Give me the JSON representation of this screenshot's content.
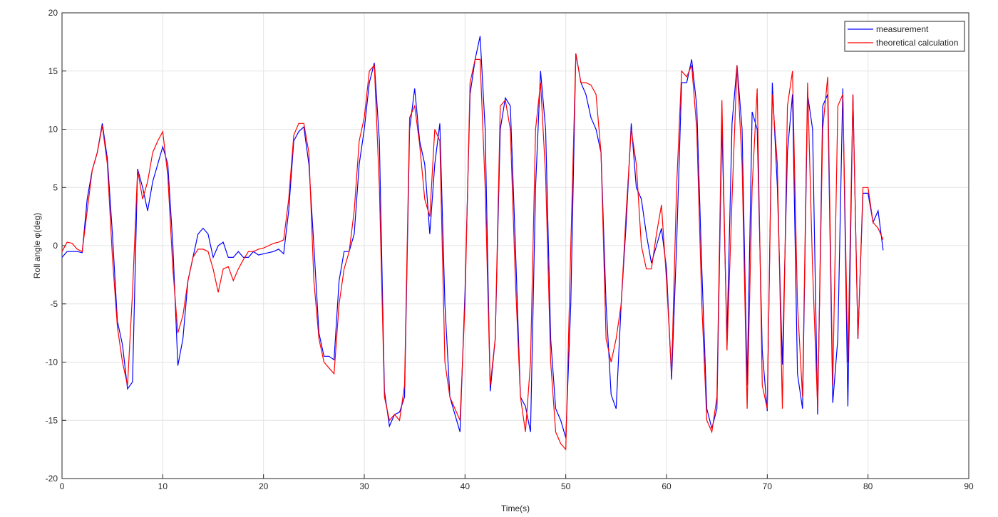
{
  "chart_data": {
    "type": "line",
    "xlabel": "Time(s)",
    "ylabel": "Roll angle φ(deg)",
    "xlim": [
      0,
      90
    ],
    "ylim": [
      -20,
      20
    ],
    "xticks": [
      0,
      10,
      20,
      30,
      40,
      50,
      60,
      70,
      80,
      90
    ],
    "yticks": [
      -20,
      -15,
      -10,
      -5,
      0,
      5,
      10,
      15,
      20
    ],
    "grid": true,
    "legend": "upper right",
    "x": [
      0,
      0.5,
      1,
      1.5,
      2,
      2.5,
      3,
      3.5,
      4,
      4.5,
      5,
      5.5,
      6,
      6.5,
      7,
      7.5,
      8,
      8.5,
      9,
      9.5,
      10,
      10.5,
      11,
      11.5,
      12,
      12.5,
      13,
      13.5,
      14,
      14.5,
      15,
      15.5,
      16,
      16.5,
      17,
      17.5,
      18,
      18.5,
      19,
      19.5,
      20,
      20.5,
      21,
      21.5,
      22,
      22.5,
      23,
      23.5,
      24,
      24.5,
      25,
      25.5,
      26,
      26.5,
      27,
      27.5,
      28,
      28.5,
      29,
      29.5,
      30,
      30.5,
      31,
      31.5,
      32,
      32.5,
      33,
      33.5,
      34,
      34.5,
      35,
      35.5,
      36,
      36.5,
      37,
      37.5,
      38,
      38.5,
      39,
      39.5,
      40,
      40.5,
      41,
      41.5,
      42,
      42.5,
      43,
      43.5,
      44,
      44.5,
      45,
      45.5,
      46,
      46.5,
      47,
      47.5,
      48,
      48.5,
      49,
      49.5,
      50,
      50.5,
      51,
      51.5,
      52,
      52.5,
      53,
      53.5,
      54,
      54.5,
      55,
      55.5,
      56,
      56.5,
      57,
      57.5,
      58,
      58.5,
      59,
      59.5,
      60,
      60.5,
      61,
      61.5,
      62,
      62.5,
      63,
      63.5,
      64,
      64.5,
      65,
      65.5,
      66,
      66.5,
      67,
      67.5,
      68,
      68.5,
      69,
      69.5,
      70,
      70.5,
      71,
      71.5,
      72,
      72.5,
      73,
      73.5,
      74,
      74.5,
      75,
      75.5,
      76,
      76.5,
      77,
      77.5,
      78,
      78.5,
      79,
      79.5,
      80,
      80.5,
      81,
      81.5
    ],
    "series": [
      {
        "name": "measurement",
        "color": "#0000ff",
        "values": [
          -1,
          -0.5,
          -0.5,
          -0.5,
          -0.6,
          4,
          6.5,
          8,
          10.5,
          7.5,
          1,
          -6.5,
          -8.5,
          -12.3,
          -11.7,
          6.6,
          5,
          3,
          5.5,
          7,
          8.5,
          7,
          0,
          -10.3,
          -8,
          -3,
          -1,
          1,
          1.5,
          1,
          -1,
          0,
          0.3,
          -1,
          -1,
          -0.5,
          -1,
          -1,
          -0.5,
          -0.8,
          -0.7,
          -0.6,
          -0.5,
          -0.3,
          -0.7,
          3,
          9,
          9.8,
          10.2,
          7,
          0,
          -7.5,
          -9.5,
          -9.5,
          -9.8,
          -3,
          -0.5,
          -0.5,
          1,
          7,
          10,
          14,
          15.7,
          9,
          -12.5,
          -15.5,
          -14.5,
          -14.3,
          -13,
          10,
          13.5,
          9,
          7,
          1,
          7,
          10.5,
          -5,
          -13,
          -14.5,
          -16,
          -4,
          13,
          16,
          18,
          10,
          -12.5,
          -8,
          10,
          12.7,
          12,
          0,
          -13,
          -13.8,
          -16,
          5,
          15,
          10,
          -8,
          -14,
          -15,
          -16.5,
          -5,
          16.5,
          14,
          13,
          11,
          10,
          8,
          -5,
          -12.8,
          -14,
          -5,
          2,
          10.5,
          5,
          4,
          1,
          -1.5,
          0,
          1.5,
          -2,
          -11.5,
          0,
          14,
          14,
          16,
          12,
          -2,
          -14,
          -15.7,
          -14,
          10.5,
          -8,
          10.5,
          15.5,
          10,
          -12,
          11.5,
          10,
          -9,
          -14.2,
          14,
          5,
          -10.2,
          8,
          13,
          -11,
          -14,
          13,
          10,
          -14.5,
          12,
          13,
          -13.5,
          -8,
          13.5,
          -13.8,
          13,
          -8,
          4.5,
          4.5,
          2,
          3,
          -0.4
        ]
      },
      {
        "name": "theoretical calculation",
        "color": "#ff0000",
        "values": [
          -0.5,
          0.3,
          0.2,
          -0.3,
          -0.5,
          3,
          6.5,
          8,
          10.3,
          7,
          -1,
          -7,
          -10,
          -12,
          -4,
          6.5,
          4,
          5.5,
          8,
          9,
          9.8,
          6,
          -2,
          -7.5,
          -6,
          -3,
          -1,
          -0.3,
          -0.3,
          -0.5,
          -2,
          -4,
          -2,
          -1.8,
          -3,
          -2,
          -1.2,
          -0.5,
          -0.5,
          -0.3,
          -0.2,
          0,
          0.2,
          0.3,
          0.5,
          4,
          9.5,
          10.5,
          10.5,
          8,
          -3,
          -8,
          -10,
          -10.5,
          -11,
          -5,
          -2,
          -0.5,
          3,
          9,
          11,
          15,
          15.5,
          5,
          -13,
          -15,
          -14.5,
          -15,
          -12,
          11,
          12,
          8.7,
          4,
          2.5,
          10,
          9,
          -10,
          -13,
          -14,
          -15,
          -5,
          14,
          16,
          16,
          5,
          -12,
          -8,
          12,
          12.5,
          10,
          -3,
          -13,
          -16,
          -10,
          10,
          14,
          6,
          -10,
          -16,
          -17,
          -17.5,
          0,
          16.5,
          14,
          14,
          13.8,
          13,
          8,
          -8,
          -10,
          -8,
          -5,
          3,
          10,
          7,
          0,
          -2,
          -2,
          1,
          3.5,
          -3,
          -11,
          5,
          15,
          14.5,
          15.5,
          10,
          -5,
          -15,
          -16,
          -13,
          12.5,
          -9,
          4,
          15.5,
          7,
          -14,
          5,
          13.5,
          -12,
          -14,
          13,
          7,
          -14,
          12,
          15,
          -5,
          -13,
          14,
          -2,
          -14,
          10,
          14.5,
          -12,
          12,
          13,
          -10,
          13,
          -8,
          5,
          5,
          2,
          1.5,
          0.5
        ]
      }
    ]
  }
}
